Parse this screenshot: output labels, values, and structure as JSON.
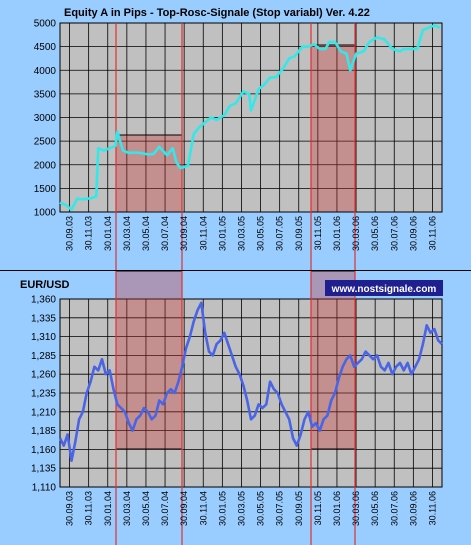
{
  "chart_data": [
    {
      "type": "line",
      "title": "Equity A in Pips - Top-Rosc-Signale (Stop variabl) Ver. 4.22",
      "xlabel": "",
      "ylabel": "",
      "ylim": [
        1000,
        5000
      ],
      "yticks": [
        "1000",
        "1500",
        "2000",
        "2500",
        "3000",
        "3500",
        "4000",
        "4500",
        "5000"
      ],
      "grid": true,
      "line_color": "#33E8E8",
      "x_tick_labels": [
        "30.09.03",
        "30.11.03",
        "30.01.04",
        "30.03.04",
        "30.05.04",
        "30.07.04",
        "30.09.04",
        "30.11.04",
        "30.01.05",
        "30.03.05",
        "30.05.05",
        "30.07.05",
        "30.09.05",
        "30.11.05",
        "30.01.06",
        "30.03.06",
        "30.05.06",
        "30.07.06",
        "30.09.06",
        "30.11.06"
      ],
      "series": [
        {
          "x": [
            0,
            0.3,
            0.6,
            0.9,
            1.2,
            1.6,
            1.9,
            2.0,
            2.3,
            2.6,
            2.9,
            3.0,
            3.3,
            3.6,
            3.9,
            4.2,
            4.6,
            4.9,
            5.2,
            5.6,
            5.9,
            6.1,
            6.3,
            6.7,
            7.0,
            7.3,
            7.6,
            7.9,
            8.2,
            8.6,
            8.9,
            9.2,
            9.6,
            9.9,
            10.0,
            10.4,
            10.7,
            11.0,
            11.3,
            11.7,
            12.0,
            12.3,
            12.7,
            13.0,
            13.3,
            13.6,
            13.9,
            14.1,
            14.4,
            14.7,
            15.0,
            15.2,
            15.5,
            15.9,
            16.2,
            16.6,
            17.0,
            17.4,
            17.8,
            18.0,
            18.3,
            18.7,
            19.0,
            19.3,
            19.6,
            19.9
          ],
          "y": [
            1200,
            1150,
            1050,
            1280,
            1270,
            1290,
            1330,
            2350,
            2300,
            2350,
            2400,
            2700,
            2300,
            2250,
            2260,
            2250,
            2220,
            2230,
            2380,
            2200,
            2350,
            2050,
            1930,
            1980,
            2650,
            2800,
            2900,
            3000,
            2950,
            3050,
            3250,
            3300,
            3550,
            3500,
            3150,
            3600,
            3700,
            3850,
            3850,
            4050,
            4250,
            4300,
            4500,
            4500,
            4550,
            4450,
            4450,
            4600,
            4600,
            4400,
            4350,
            4000,
            4350,
            4400,
            4600,
            4700,
            4650,
            4450,
            4400,
            4450,
            4450,
            4450,
            4850,
            4900,
            4950,
            4900
          ]
        }
      ]
    },
    {
      "type": "line",
      "title": "EUR/USD",
      "xlabel": "",
      "ylabel": "",
      "ylim": [
        1.11,
        1.36
      ],
      "yticks": [
        "1,110",
        "1,135",
        "1,160",
        "1,185",
        "1,210",
        "1,235",
        "1,260",
        "1,285",
        "1,310",
        "1,335",
        "1,360"
      ],
      "grid": true,
      "line_color": "#4A64E6",
      "annotation": "www.nostsignale.com",
      "x_tick_labels": [
        "30.09.03",
        "30.11.03",
        "30.01.04",
        "30.03.04",
        "30.05.04",
        "30.07.04",
        "30.09.04",
        "30.11.04",
        "30.01.05",
        "30.03.05",
        "30.05.05",
        "30.07.05",
        "30.09.05",
        "30.11.05",
        "30.01.06",
        "30.03.06",
        "30.05.06",
        "30.07.06",
        "30.09.06",
        "30.11.06"
      ],
      "series": [
        {
          "x": [
            0,
            0.2,
            0.4,
            0.6,
            0.8,
            1.0,
            1.2,
            1.4,
            1.6,
            1.8,
            2.0,
            2.2,
            2.4,
            2.6,
            2.8,
            3.0,
            3.2,
            3.4,
            3.6,
            3.8,
            4.0,
            4.2,
            4.4,
            4.6,
            4.8,
            5.0,
            5.2,
            5.4,
            5.6,
            5.8,
            6.0,
            6.2,
            6.4,
            6.6,
            6.8,
            7.0,
            7.2,
            7.4,
            7.6,
            7.8,
            8.0,
            8.2,
            8.4,
            8.6,
            8.8,
            9.0,
            9.2,
            9.4,
            9.6,
            9.8,
            10.0,
            10.2,
            10.4,
            10.6,
            10.8,
            11.0,
            11.2,
            11.4,
            11.6,
            11.8,
            12.0,
            12.2,
            12.4,
            12.6,
            12.8,
            13.0,
            13.2,
            13.4,
            13.6,
            13.8,
            14.0,
            14.2,
            14.4,
            14.6,
            14.8,
            15.0,
            15.2,
            15.4,
            15.6,
            15.8,
            16.0,
            16.2,
            16.4,
            16.6,
            16.8,
            17.0,
            17.2,
            17.4,
            17.6,
            17.8,
            18.0,
            18.2,
            18.4,
            18.6,
            18.8,
            19.0,
            19.2,
            19.4,
            19.6,
            19.8,
            20.0
          ],
          "y": [
            1.175,
            1.165,
            1.18,
            1.145,
            1.17,
            1.2,
            1.21,
            1.235,
            1.25,
            1.27,
            1.265,
            1.28,
            1.26,
            1.265,
            1.24,
            1.22,
            1.215,
            1.21,
            1.195,
            1.185,
            1.2,
            1.205,
            1.215,
            1.21,
            1.2,
            1.205,
            1.225,
            1.22,
            1.235,
            1.24,
            1.235,
            1.25,
            1.27,
            1.295,
            1.31,
            1.33,
            1.345,
            1.355,
            1.315,
            1.29,
            1.285,
            1.3,
            1.305,
            1.315,
            1.3,
            1.285,
            1.27,
            1.26,
            1.245,
            1.225,
            1.2,
            1.205,
            1.22,
            1.215,
            1.22,
            1.25,
            1.24,
            1.235,
            1.22,
            1.21,
            1.2,
            1.175,
            1.165,
            1.18,
            1.2,
            1.21,
            1.19,
            1.195,
            1.185,
            1.2,
            1.205,
            1.225,
            1.235,
            1.255,
            1.27,
            1.28,
            1.285,
            1.27,
            1.275,
            1.28,
            1.29,
            1.285,
            1.28,
            1.285,
            1.27,
            1.265,
            1.275,
            1.26,
            1.27,
            1.275,
            1.265,
            1.275,
            1.26,
            1.27,
            1.28,
            1.3,
            1.325,
            1.315,
            1.32,
            1.305,
            1.3
          ]
        }
      ]
    }
  ]
}
